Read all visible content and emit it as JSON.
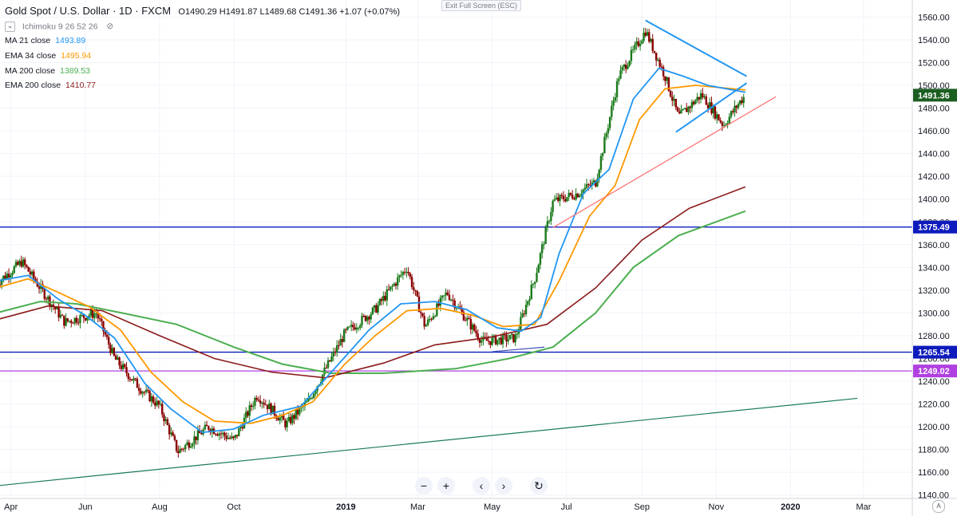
{
  "header": {
    "title": "Gold Spot / U.S. Dollar · 1D · FXCM",
    "ohlc": "O1490.29 H1491.87 L1489.68 C1491.36 +1.07 (+0.07%)"
  },
  "indicators": [
    {
      "label": "Ichimoku 9 26 52 26",
      "value": "",
      "color": "#787b86"
    },
    {
      "label": "MA 21 close",
      "value": "1493.89",
      "color": "#2196f3"
    },
    {
      "label": "EMA 34 close",
      "value": "1495.94",
      "color": "#ff9800"
    },
    {
      "label": "MA 200 close",
      "value": "1389.53",
      "color": "#4caf50"
    },
    {
      "label": "EMA 200 close",
      "value": "1410.77",
      "color": "#8b1a1a"
    }
  ],
  "toolbar": {
    "exit_fullscreen": "Exit Full Screen (ESC)",
    "zoom_out": "−",
    "zoom_in": "+",
    "scroll_left": "‹",
    "scroll_right": "›",
    "reset": "↻",
    "auto": "A"
  },
  "chart_data": {
    "type": "candlestick",
    "y_ticks": [
      1140,
      1160,
      1180,
      1200,
      1220,
      1240,
      1260,
      1280,
      1300,
      1320,
      1340,
      1360,
      1380,
      1400,
      1420,
      1440,
      1460,
      1480,
      1500,
      1520,
      1540,
      1560
    ],
    "ylim": [
      1137,
      1575
    ],
    "x_labels": [
      "Apr",
      "Jun",
      "Aug",
      "Oct",
      "2019",
      "Mar",
      "May",
      "Jul",
      "Sep",
      "Nov",
      "2020",
      "Mar"
    ],
    "x_label_bold": [
      "2019",
      "2020"
    ],
    "price_labels": [
      {
        "value": 1491.36,
        "text": "1491.36",
        "color": "#1b5e20"
      },
      {
        "value": 1375.49,
        "text": "1375.49",
        "color": "#0d1bbd"
      },
      {
        "value": 1265.54,
        "text": "1265.54",
        "color": "#0d1bbd"
      },
      {
        "value": 1249.02,
        "text": "1249.02",
        "color": "#b040e0"
      }
    ],
    "horizontal_lines": [
      {
        "value": 1375.49,
        "color": "#0d1bbd"
      },
      {
        "value": 1265.54,
        "color": "#0d1bbd"
      },
      {
        "value": 1249.02,
        "color": "#b040e0"
      }
    ],
    "colors": {
      "up": "#1b7a1b",
      "down": "#8b0000",
      "ma21": "#2196f3",
      "ema34": "#ff9800",
      "ma200": "#4caf50",
      "ema200": "#8b1a1a"
    },
    "price_path": [
      [
        "2018-03-20",
        1326
      ],
      [
        "2018-04-10",
        1345
      ],
      [
        "2018-04-25",
        1322
      ],
      [
        "2018-05-15",
        1292
      ],
      [
        "2018-06-10",
        1300
      ],
      [
        "2018-06-25",
        1260
      ],
      [
        "2018-07-15",
        1235
      ],
      [
        "2018-08-01",
        1218
      ],
      [
        "2018-08-16",
        1178
      ],
      [
        "2018-09-10",
        1200
      ],
      [
        "2018-10-01",
        1188
      ],
      [
        "2018-10-20",
        1228
      ],
      [
        "2018-11-13",
        1202
      ],
      [
        "2018-12-01",
        1222
      ],
      [
        "2018-12-31",
        1282
      ],
      [
        "2019-01-25",
        1303
      ],
      [
        "2019-02-20",
        1340
      ],
      [
        "2019-03-07",
        1288
      ],
      [
        "2019-03-25",
        1318
      ],
      [
        "2019-04-23",
        1275
      ],
      [
        "2019-05-20",
        1278
      ],
      [
        "2019-06-05",
        1330
      ],
      [
        "2019-06-20",
        1398
      ],
      [
        "2019-07-10",
        1405
      ],
      [
        "2019-07-25",
        1415
      ],
      [
        "2019-08-13",
        1508
      ],
      [
        "2019-09-04",
        1548
      ],
      [
        "2019-09-20",
        1508
      ],
      [
        "2019-10-01",
        1472
      ],
      [
        "2019-10-20",
        1492
      ],
      [
        "2019-11-07",
        1465
      ],
      [
        "2019-11-20",
        1485
      ],
      [
        "2019-11-25",
        1491.36
      ]
    ],
    "ma21": [
      [
        "2018-03-20",
        1328
      ],
      [
        "2018-04-15",
        1333
      ],
      [
        "2018-05-10",
        1312
      ],
      [
        "2018-06-01",
        1298
      ],
      [
        "2018-06-25",
        1278
      ],
      [
        "2018-07-20",
        1238
      ],
      [
        "2018-08-10",
        1216
      ],
      [
        "2018-09-05",
        1195
      ],
      [
        "2018-10-01",
        1198
      ],
      [
        "2018-10-25",
        1210
      ],
      [
        "2018-11-25",
        1218
      ],
      [
        "2018-12-20",
        1248
      ],
      [
        "2019-01-20",
        1285
      ],
      [
        "2019-02-15",
        1308
      ],
      [
        "2019-03-15",
        1310
      ],
      [
        "2019-04-10",
        1303
      ],
      [
        "2019-05-05",
        1287
      ],
      [
        "2019-05-25",
        1284
      ],
      [
        "2019-06-10",
        1296
      ],
      [
        "2019-06-25",
        1352
      ],
      [
        "2019-07-15",
        1405
      ],
      [
        "2019-08-05",
        1426
      ],
      [
        "2019-08-25",
        1488
      ],
      [
        "2019-09-15",
        1515
      ],
      [
        "2019-10-05",
        1508
      ],
      [
        "2019-10-25",
        1500
      ],
      [
        "2019-11-25",
        1493.89
      ]
    ],
    "ema34": [
      [
        "2018-03-20",
        1322
      ],
      [
        "2018-04-15",
        1330
      ],
      [
        "2018-05-10",
        1318
      ],
      [
        "2018-06-05",
        1305
      ],
      [
        "2018-06-30",
        1285
      ],
      [
        "2018-07-25",
        1248
      ],
      [
        "2018-08-20",
        1222
      ],
      [
        "2018-09-15",
        1205
      ],
      [
        "2018-10-15",
        1203
      ],
      [
        "2018-11-10",
        1210
      ],
      [
        "2018-12-05",
        1222
      ],
      [
        "2018-12-31",
        1255
      ],
      [
        "2019-01-25",
        1280
      ],
      [
        "2019-02-20",
        1302
      ],
      [
        "2019-03-20",
        1304
      ],
      [
        "2019-04-15",
        1298
      ],
      [
        "2019-05-10",
        1288
      ],
      [
        "2019-06-05",
        1290
      ],
      [
        "2019-06-25",
        1328
      ],
      [
        "2019-07-20",
        1385
      ],
      [
        "2019-08-10",
        1412
      ],
      [
        "2019-08-30",
        1470
      ],
      [
        "2019-09-20",
        1497
      ],
      [
        "2019-10-15",
        1500
      ],
      [
        "2019-11-25",
        1495.94
      ]
    ],
    "ema200": [
      [
        "2018-03-20",
        1294
      ],
      [
        "2018-05-01",
        1306
      ],
      [
        "2018-06-15",
        1302
      ],
      [
        "2018-08-01",
        1280
      ],
      [
        "2018-09-15",
        1260
      ],
      [
        "2018-11-01",
        1248
      ],
      [
        "2018-12-15",
        1243
      ],
      [
        "2019-02-01",
        1256
      ],
      [
        "2019-03-15",
        1272
      ],
      [
        "2019-05-01",
        1279
      ],
      [
        "2019-06-15",
        1290
      ],
      [
        "2019-07-25",
        1322
      ],
      [
        "2019-09-01",
        1364
      ],
      [
        "2019-10-10",
        1392
      ],
      [
        "2019-11-25",
        1410.77
      ]
    ],
    "ma200": [
      [
        "2018-03-20",
        1300
      ],
      [
        "2018-04-25",
        1310
      ],
      [
        "2018-05-25",
        1308
      ],
      [
        "2018-07-01",
        1300
      ],
      [
        "2018-08-15",
        1290
      ],
      [
        "2018-10-01",
        1270
      ],
      [
        "2018-11-10",
        1255
      ],
      [
        "2018-12-20",
        1247
      ],
      [
        "2019-02-01",
        1247
      ],
      [
        "2019-04-01",
        1251
      ],
      [
        "2019-05-15",
        1260
      ],
      [
        "2019-06-20",
        1270
      ],
      [
        "2019-07-25",
        1300
      ],
      [
        "2019-08-25",
        1340
      ],
      [
        "2019-10-01",
        1368
      ],
      [
        "2019-11-25",
        1389.53
      ]
    ],
    "trendlines": [
      {
        "from": [
          "2018-02-01",
          1143
        ],
        "to": [
          "2020-02-25",
          1225
        ],
        "color": "#1a7a5a"
      },
      {
        "from": [
          "2019-06-20",
          1375
        ],
        "to": [
          "2019-12-20",
          1490
        ],
        "color": "#ff6b6b"
      },
      {
        "from": [
          "2019-09-04",
          1557
        ],
        "to": [
          "2019-11-26",
          1508
        ],
        "color": "#2196f3"
      },
      {
        "from": [
          "2019-09-29",
          1459
        ],
        "to": [
          "2019-11-26",
          1502
        ],
        "color": "#2196f3"
      },
      {
        "from": [
          "2019-05-01",
          1266
        ],
        "to": [
          "2019-06-13",
          1270
        ],
        "color": "#3f51b5"
      }
    ]
  }
}
